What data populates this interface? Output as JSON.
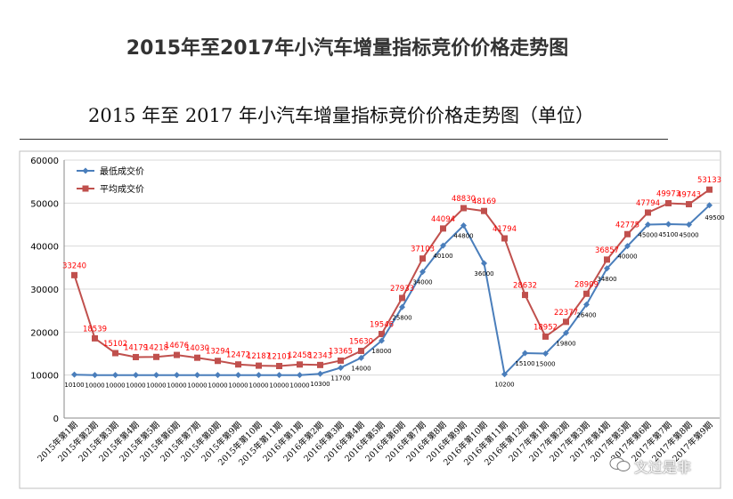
{
  "page_title": "2015年至2017年小汽车增量指标竞价价格走势图",
  "doc_heading": "2015 年至 2017 年小汽车增量指标竞价价格走势图（单位）",
  "watermark": "文过是非",
  "colors": {
    "min_series": "#4a7ebb",
    "avg_series": "#c0504d",
    "avg_label": "#ff0000",
    "grid": "#d9d9d9",
    "frame": "#bfbfbf"
  },
  "chart_data": {
    "type": "line",
    "title": "",
    "xlabel": "",
    "ylabel": "",
    "ylim": [
      0,
      60000
    ],
    "yticks": [
      0,
      10000,
      20000,
      30000,
      40000,
      50000,
      60000
    ],
    "grid": true,
    "legend_position": "top-left",
    "categories": [
      "2015年第1期",
      "2015年第2期",
      "2015年第3期",
      "2015年第4期",
      "2015年第5期",
      "2015年第6期",
      "2015年第7期",
      "2015年第8期",
      "2015年第9期",
      "2015年第10期",
      "2015年第11期",
      "2016年第1期",
      "2016年第2期",
      "2016年第3期",
      "2016年第4期",
      "2016年第5期",
      "2016年第6期",
      "2016年第7期",
      "2016年第8期",
      "2016年第9期",
      "2016年第10期",
      "2016年第11期",
      "2016年第12期",
      "2017年第1期",
      "2017年第2期",
      "2017年第3期",
      "2017年第4期",
      "2017年第5期",
      "2017年第6期",
      "2017年第7期",
      "2017年第8期",
      "2017年第9期"
    ],
    "series": [
      {
        "name": "最低成交价",
        "values": [
          10100,
          10000,
          10000,
          10000,
          10000,
          10000,
          10000,
          10000,
          10000,
          10000,
          10000,
          10000,
          10300,
          11700,
          14000,
          18000,
          25800,
          34000,
          40100,
          44800,
          36000,
          10200,
          15100,
          15000,
          19800,
          26400,
          34800,
          40000,
          45000,
          45100,
          45000,
          49500
        ]
      },
      {
        "name": "平均成交价",
        "values": [
          33240,
          18539,
          15102,
          14179,
          14218,
          14676,
          14030,
          13294,
          12472,
          12187,
          12101,
          12458,
          12343,
          13365,
          15630,
          19546,
          27933,
          37103,
          44094,
          48830,
          48169,
          41794,
          28632,
          18952,
          22377,
          28909,
          36857,
          42775,
          47794,
          49973,
          49743,
          53133
        ]
      }
    ]
  }
}
